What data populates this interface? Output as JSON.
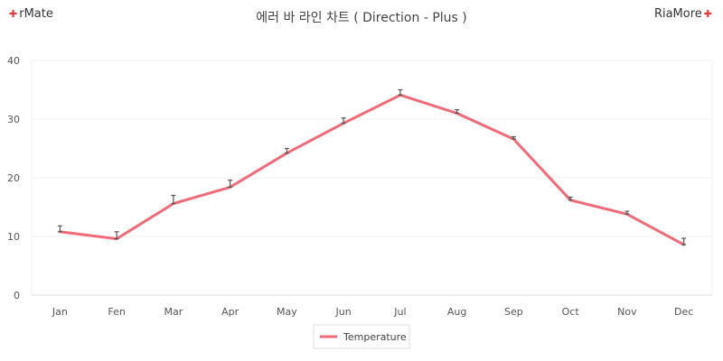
{
  "brand_left": "rMate",
  "brand_right": "RiaMore",
  "chart_data": {
    "type": "line",
    "title": "에러 바 라인 차트 ( Direction - Plus )",
    "xlabel": "",
    "ylabel": "",
    "categories": [
      "Jan",
      "Fen",
      "Mar",
      "Apr",
      "May",
      "Jun",
      "Jul",
      "Aug",
      "Sep",
      "Oct",
      "Nov",
      "Dec"
    ],
    "ylim": [
      0,
      40
    ],
    "yticks": [
      0,
      10,
      20,
      30,
      40
    ],
    "grid": true,
    "legend_position": "bottom-center",
    "series": [
      {
        "name": "Temperature",
        "color": "#f06b77",
        "values": [
          10.8,
          9.6,
          15.6,
          18.4,
          24.2,
          29.3,
          34.1,
          31.0,
          26.6,
          16.2,
          13.8,
          8.6
        ],
        "error_plus": [
          1.0,
          1.2,
          1.4,
          1.2,
          0.8,
          0.9,
          0.9,
          0.6,
          0.4,
          0.5,
          0.5,
          1.1
        ]
      }
    ]
  }
}
